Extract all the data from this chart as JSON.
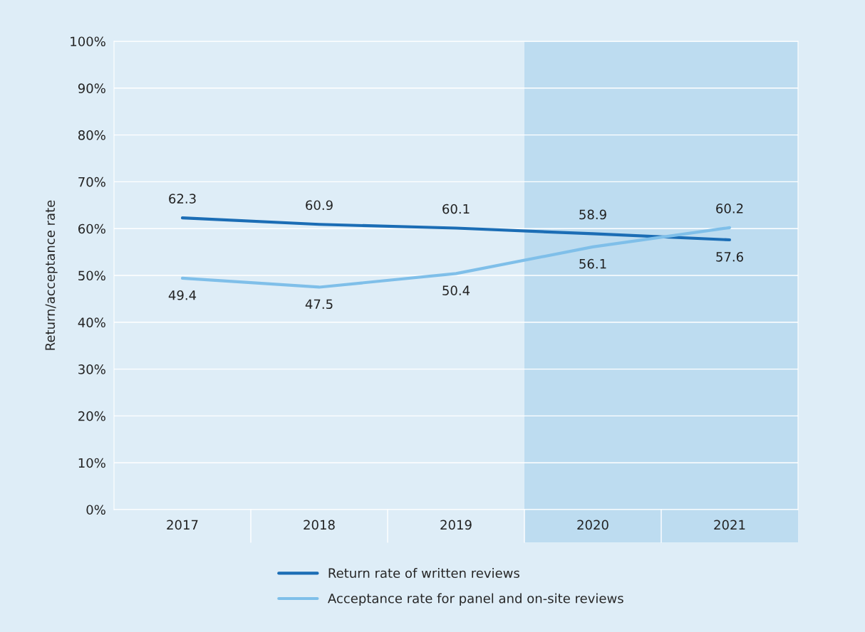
{
  "chart_data": {
    "type": "line",
    "ylabel": "Return/acceptance rate",
    "categories": [
      "2017",
      "2018",
      "2019",
      "2020",
      "2021"
    ],
    "series": [
      {
        "name": "Return rate of written reviews",
        "color": "#1b6db5",
        "values": [
          62.3,
          60.9,
          60.1,
          58.9,
          57.6
        ]
      },
      {
        "name": "Acceptance rate for panel and on-site reviews",
        "color": "#7fbfe9",
        "values": [
          49.4,
          47.5,
          50.4,
          56.1,
          60.2
        ]
      }
    ],
    "ylim": [
      0,
      100
    ],
    "yticks": [
      {
        "value": 0,
        "label": "0%"
      },
      {
        "value": 10,
        "label": "10%"
      },
      {
        "value": 20,
        "label": "20%"
      },
      {
        "value": 30,
        "label": "30%"
      },
      {
        "value": 40,
        "label": "40%"
      },
      {
        "value": 50,
        "label": "50%"
      },
      {
        "value": 60,
        "label": "60%"
      },
      {
        "value": 70,
        "label": "70%"
      },
      {
        "value": 80,
        "label": "80%"
      },
      {
        "value": 90,
        "label": "90%"
      },
      {
        "value": 100,
        "label": "100%"
      }
    ],
    "bands": [
      {
        "axis": "x",
        "from": "2020",
        "to": "2021",
        "color": "#bddcf0"
      }
    ],
    "grid": "y",
    "legend": "bottom",
    "data_labels": true
  }
}
